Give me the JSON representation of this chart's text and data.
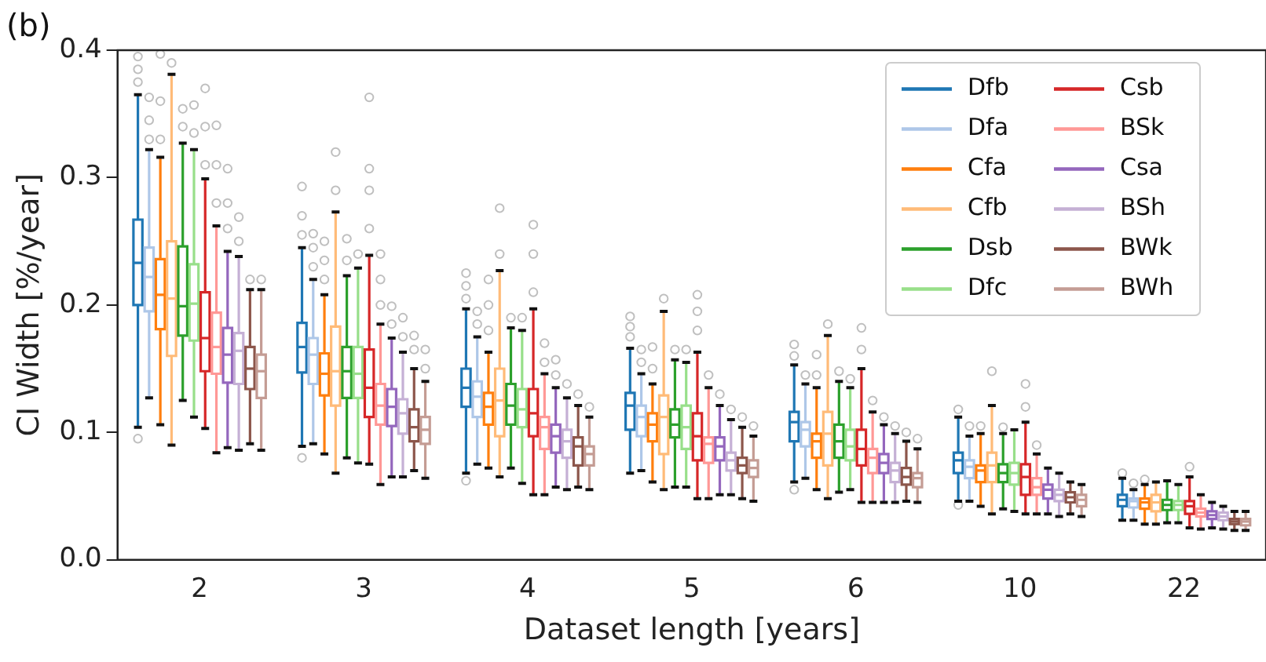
{
  "chart_data": {
    "type": "box",
    "title": "(b)",
    "xlabel": "Dataset length [years]",
    "ylabel": "CI Width [%/year]",
    "categories": [
      "2",
      "3",
      "4",
      "5",
      "6",
      "10",
      "22"
    ],
    "ylim": [
      0,
      0.4
    ],
    "yticks": [
      {
        "value": 0,
        "label": "0.0"
      },
      0.1,
      0.2,
      0.3,
      0.4
    ],
    "legend": "top right",
    "series": [
      {
        "name": "Dfb",
        "color": "#1f77b4",
        "boxes": [
          {
            "low": 0.104,
            "q1": 0.2,
            "median": 0.233,
            "q3": 0.267,
            "high": 0.365,
            "outliers": [
              0.375,
              0.385,
              0.395,
              0.095
            ]
          },
          {
            "low": 0.089,
            "q1": 0.147,
            "median": 0.167,
            "q3": 0.186,
            "high": 0.245,
            "outliers": [
              0.255,
              0.27,
              0.293,
              0.08
            ]
          },
          {
            "low": 0.068,
            "q1": 0.12,
            "median": 0.135,
            "q3": 0.15,
            "high": 0.197,
            "outliers": [
              0.205,
              0.215,
              0.225,
              0.062
            ]
          },
          {
            "low": 0.068,
            "q1": 0.102,
            "median": 0.121,
            "q3": 0.131,
            "high": 0.166,
            "outliers": [
              0.175,
              0.183,
              0.191
            ]
          },
          {
            "low": 0.061,
            "q1": 0.093,
            "median": 0.108,
            "q3": 0.116,
            "high": 0.153,
            "outliers": [
              0.16,
              0.169,
              0.055
            ]
          },
          {
            "low": 0.046,
            "q1": 0.068,
            "median": 0.078,
            "q3": 0.084,
            "high": 0.112,
            "outliers": [
              0.118,
              0.043
            ]
          },
          {
            "low": 0.031,
            "q1": 0.042,
            "median": 0.047,
            "q3": 0.051,
            "high": 0.064,
            "outliers": [
              0.068
            ]
          }
        ]
      },
      {
        "name": "Dfa",
        "color": "#aec7e8",
        "boxes": [
          {
            "low": 0.127,
            "q1": 0.195,
            "median": 0.222,
            "q3": 0.245,
            "high": 0.322,
            "outliers": [
              0.33,
              0.345,
              0.363
            ]
          },
          {
            "low": 0.091,
            "q1": 0.138,
            "median": 0.161,
            "q3": 0.174,
            "high": 0.22,
            "outliers": [
              0.23,
              0.245,
              0.256
            ]
          },
          {
            "low": 0.075,
            "q1": 0.112,
            "median": 0.128,
            "q3": 0.14,
            "high": 0.175,
            "outliers": [
              0.185,
              0.195
            ]
          },
          {
            "low": 0.07,
            "q1": 0.097,
            "median": 0.112,
            "q3": 0.121,
            "high": 0.146,
            "outliers": [
              0.155,
              0.165
            ]
          },
          {
            "low": 0.064,
            "q1": 0.089,
            "median": 0.102,
            "q3": 0.108,
            "high": 0.138,
            "outliers": [
              0.145
            ]
          },
          {
            "low": 0.046,
            "q1": 0.064,
            "median": 0.073,
            "q3": 0.078,
            "high": 0.097,
            "outliers": [
              0.105
            ]
          },
          {
            "low": 0.031,
            "q1": 0.041,
            "median": 0.046,
            "q3": 0.048,
            "high": 0.055,
            "outliers": [
              0.06
            ]
          }
        ]
      },
      {
        "name": "Cfa",
        "color": "#ff7f0e",
        "boxes": [
          {
            "low": 0.106,
            "q1": 0.181,
            "median": 0.208,
            "q3": 0.236,
            "high": 0.316,
            "outliers": [
              0.33,
              0.36,
              0.397
            ]
          },
          {
            "low": 0.083,
            "q1": 0.129,
            "median": 0.146,
            "q3": 0.162,
            "high": 0.208,
            "outliers": [
              0.22,
              0.235,
              0.25
            ]
          },
          {
            "low": 0.072,
            "q1": 0.106,
            "median": 0.12,
            "q3": 0.131,
            "high": 0.163,
            "outliers": [
              0.18,
              0.2,
              0.22
            ]
          },
          {
            "low": 0.061,
            "q1": 0.093,
            "median": 0.106,
            "q3": 0.115,
            "high": 0.138,
            "outliers": [
              0.15,
              0.167
            ]
          },
          {
            "low": 0.055,
            "q1": 0.08,
            "median": 0.093,
            "q3": 0.099,
            "high": 0.135,
            "outliers": [
              0.145,
              0.161
            ]
          },
          {
            "low": 0.042,
            "q1": 0.061,
            "median": 0.07,
            "q3": 0.074,
            "high": 0.099,
            "outliers": [
              0.105
            ]
          },
          {
            "low": 0.028,
            "q1": 0.04,
            "median": 0.045,
            "q3": 0.048,
            "high": 0.059,
            "outliers": [
              0.063
            ]
          }
        ]
      },
      {
        "name": "Cfb",
        "color": "#ffbb78",
        "boxes": [
          {
            "low": 0.09,
            "q1": 0.16,
            "median": 0.205,
            "q3": 0.25,
            "high": 0.381,
            "outliers": [
              0.39
            ]
          },
          {
            "low": 0.068,
            "q1": 0.121,
            "median": 0.148,
            "q3": 0.183,
            "high": 0.273,
            "outliers": [
              0.29,
              0.32
            ]
          },
          {
            "low": 0.065,
            "q1": 0.097,
            "median": 0.125,
            "q3": 0.15,
            "high": 0.227,
            "outliers": [
              0.24,
              0.276
            ]
          },
          {
            "low": 0.055,
            "q1": 0.083,
            "median": 0.112,
            "q3": 0.129,
            "high": 0.195,
            "outliers": [
              0.205
            ]
          },
          {
            "low": 0.048,
            "q1": 0.074,
            "median": 0.099,
            "q3": 0.116,
            "high": 0.176,
            "outliers": [
              0.185
            ]
          },
          {
            "low": 0.036,
            "q1": 0.061,
            "median": 0.074,
            "q3": 0.084,
            "high": 0.121,
            "outliers": [
              0.148
            ]
          },
          {
            "low": 0.028,
            "q1": 0.038,
            "median": 0.045,
            "q3": 0.051,
            "high": 0.061
          }
        ]
      },
      {
        "name": "Dsb",
        "color": "#2ca02c",
        "boxes": [
          {
            "low": 0.125,
            "q1": 0.176,
            "median": 0.199,
            "q3": 0.246,
            "high": 0.327,
            "outliers": [
              0.34,
              0.354
            ]
          },
          {
            "low": 0.08,
            "q1": 0.127,
            "median": 0.148,
            "q3": 0.167,
            "high": 0.223,
            "outliers": [
              0.235,
              0.252
            ]
          },
          {
            "low": 0.072,
            "q1": 0.106,
            "median": 0.121,
            "q3": 0.138,
            "high": 0.182,
            "outliers": [
              0.19
            ]
          },
          {
            "low": 0.057,
            "q1": 0.096,
            "median": 0.106,
            "q3": 0.118,
            "high": 0.157,
            "outliers": [
              0.165
            ]
          },
          {
            "low": 0.053,
            "q1": 0.08,
            "median": 0.093,
            "q3": 0.106,
            "high": 0.14,
            "outliers": [
              0.148
            ]
          },
          {
            "low": 0.04,
            "q1": 0.061,
            "median": 0.068,
            "q3": 0.075,
            "high": 0.099,
            "outliers": [
              0.104
            ]
          },
          {
            "low": 0.029,
            "q1": 0.039,
            "median": 0.043,
            "q3": 0.047,
            "high": 0.062
          }
        ]
      },
      {
        "name": "Dfc",
        "color": "#98df8a",
        "boxes": [
          {
            "low": 0.112,
            "q1": 0.172,
            "median": 0.201,
            "q3": 0.232,
            "high": 0.322,
            "outliers": [
              0.335,
              0.357
            ]
          },
          {
            "low": 0.076,
            "q1": 0.127,
            "median": 0.146,
            "q3": 0.167,
            "high": 0.229,
            "outliers": [
              0.24
            ]
          },
          {
            "low": 0.06,
            "q1": 0.104,
            "median": 0.118,
            "q3": 0.134,
            "high": 0.18,
            "outliers": [
              0.19
            ]
          },
          {
            "low": 0.057,
            "q1": 0.087,
            "median": 0.104,
            "q3": 0.121,
            "high": 0.155,
            "outliers": [
              0.165
            ]
          },
          {
            "low": 0.055,
            "q1": 0.078,
            "median": 0.089,
            "q3": 0.102,
            "high": 0.135,
            "outliers": [
              0.142
            ]
          },
          {
            "low": 0.038,
            "q1": 0.059,
            "median": 0.068,
            "q3": 0.076,
            "high": 0.102
          },
          {
            "low": 0.029,
            "q1": 0.039,
            "median": 0.043,
            "q3": 0.046,
            "high": 0.059
          }
        ]
      },
      {
        "name": "Csb",
        "color": "#d62728",
        "boxes": [
          {
            "low": 0.103,
            "q1": 0.148,
            "median": 0.174,
            "q3": 0.21,
            "high": 0.299,
            "outliers": [
              0.31,
              0.34,
              0.37
            ]
          },
          {
            "low": 0.075,
            "q1": 0.112,
            "median": 0.135,
            "q3": 0.165,
            "high": 0.239,
            "outliers": [
              0.26,
              0.29,
              0.307,
              0.363
            ]
          },
          {
            "low": 0.051,
            "q1": 0.097,
            "median": 0.115,
            "q3": 0.134,
            "high": 0.197,
            "outliers": [
              0.21,
              0.24,
              0.263
            ]
          },
          {
            "low": 0.048,
            "q1": 0.078,
            "median": 0.097,
            "q3": 0.115,
            "high": 0.163,
            "outliers": [
              0.18,
              0.195,
              0.208
            ]
          },
          {
            "low": 0.045,
            "q1": 0.074,
            "median": 0.087,
            "q3": 0.102,
            "high": 0.15,
            "outliers": [
              0.165,
              0.182
            ]
          },
          {
            "low": 0.036,
            "q1": 0.051,
            "median": 0.065,
            "q3": 0.075,
            "high": 0.108,
            "outliers": [
              0.12,
              0.138
            ]
          },
          {
            "low": 0.025,
            "q1": 0.036,
            "median": 0.042,
            "q3": 0.046,
            "high": 0.065,
            "outliers": [
              0.073
            ]
          }
        ]
      },
      {
        "name": "BSk",
        "color": "#ff9896",
        "boxes": [
          {
            "low": 0.084,
            "q1": 0.146,
            "median": 0.167,
            "q3": 0.194,
            "high": 0.262,
            "outliers": [
              0.28,
              0.31,
              0.341
            ]
          },
          {
            "low": 0.059,
            "q1": 0.106,
            "median": 0.121,
            "q3": 0.138,
            "high": 0.185,
            "outliers": [
              0.2,
              0.22,
              0.24
            ]
          },
          {
            "low": 0.051,
            "q1": 0.087,
            "median": 0.104,
            "q3": 0.112,
            "high": 0.146,
            "outliers": [
              0.155,
              0.17
            ]
          },
          {
            "low": 0.048,
            "q1": 0.076,
            "median": 0.091,
            "q3": 0.096,
            "high": 0.135,
            "outliers": [
              0.145
            ]
          },
          {
            "low": 0.045,
            "q1": 0.068,
            "median": 0.08,
            "q3": 0.087,
            "high": 0.116,
            "outliers": [
              0.125
            ]
          },
          {
            "low": 0.036,
            "q1": 0.051,
            "median": 0.057,
            "q3": 0.064,
            "high": 0.083,
            "outliers": [
              0.09
            ]
          },
          {
            "low": 0.024,
            "q1": 0.034,
            "median": 0.037,
            "q3": 0.04,
            "high": 0.051
          }
        ]
      },
      {
        "name": "Csa",
        "color": "#9467bd",
        "boxes": [
          {
            "low": 0.088,
            "q1": 0.139,
            "median": 0.161,
            "q3": 0.182,
            "high": 0.242,
            "outliers": [
              0.26,
              0.28,
              0.307
            ]
          },
          {
            "low": 0.065,
            "q1": 0.105,
            "median": 0.12,
            "q3": 0.134,
            "high": 0.174,
            "outliers": [
              0.185,
              0.199
            ]
          },
          {
            "low": 0.057,
            "q1": 0.084,
            "median": 0.097,
            "q3": 0.106,
            "high": 0.135,
            "outliers": [
              0.145,
              0.157
            ]
          },
          {
            "low": 0.051,
            "q1": 0.078,
            "median": 0.089,
            "q3": 0.096,
            "high": 0.121,
            "outliers": [
              0.13
            ]
          },
          {
            "low": 0.045,
            "q1": 0.068,
            "median": 0.076,
            "q3": 0.083,
            "high": 0.106,
            "outliers": [
              0.112
            ]
          },
          {
            "low": 0.036,
            "q1": 0.048,
            "median": 0.055,
            "q3": 0.059,
            "high": 0.072
          },
          {
            "low": 0.025,
            "q1": 0.032,
            "median": 0.035,
            "q3": 0.038,
            "high": 0.045
          }
        ]
      },
      {
        "name": "BSh",
        "color": "#c5b0d5",
        "boxes": [
          {
            "low": 0.086,
            "q1": 0.138,
            "median": 0.164,
            "q3": 0.178,
            "high": 0.238,
            "outliers": [
              0.25,
              0.269
            ]
          },
          {
            "low": 0.065,
            "q1": 0.099,
            "median": 0.115,
            "q3": 0.126,
            "high": 0.163,
            "outliers": [
              0.175,
              0.19
            ]
          },
          {
            "low": 0.055,
            "q1": 0.08,
            "median": 0.093,
            "q3": 0.102,
            "high": 0.127,
            "outliers": [
              0.138
            ]
          },
          {
            "low": 0.051,
            "q1": 0.07,
            "median": 0.078,
            "q3": 0.084,
            "high": 0.11,
            "outliers": [
              0.118
            ]
          },
          {
            "low": 0.045,
            "q1": 0.061,
            "median": 0.07,
            "q3": 0.076,
            "high": 0.099,
            "outliers": [
              0.105
            ]
          },
          {
            "low": 0.034,
            "q1": 0.046,
            "median": 0.051,
            "q3": 0.055,
            "high": 0.068
          },
          {
            "low": 0.024,
            "q1": 0.031,
            "median": 0.034,
            "q3": 0.037,
            "high": 0.042
          }
        ]
      },
      {
        "name": "BWk",
        "color": "#8c564b",
        "boxes": [
          {
            "low": 0.091,
            "q1": 0.134,
            "median": 0.15,
            "q3": 0.167,
            "high": 0.212,
            "outliers": [
              0.22
            ]
          },
          {
            "low": 0.07,
            "q1": 0.093,
            "median": 0.104,
            "q3": 0.118,
            "high": 0.15,
            "outliers": [
              0.165,
              0.176
            ]
          },
          {
            "low": 0.057,
            "q1": 0.074,
            "median": 0.089,
            "q3": 0.096,
            "high": 0.121,
            "outliers": [
              0.13
            ]
          },
          {
            "low": 0.048,
            "q1": 0.068,
            "median": 0.074,
            "q3": 0.08,
            "high": 0.104,
            "outliers": [
              0.112
            ]
          },
          {
            "low": 0.046,
            "q1": 0.059,
            "median": 0.065,
            "q3": 0.072,
            "high": 0.093,
            "outliers": [
              0.1
            ]
          },
          {
            "low": 0.036,
            "q1": 0.045,
            "median": 0.049,
            "q3": 0.053,
            "high": 0.061
          },
          {
            "low": 0.023,
            "q1": 0.028,
            "median": 0.03,
            "q3": 0.032,
            "high": 0.038
          }
        ]
      },
      {
        "name": "BWh",
        "color": "#c49c94",
        "boxes": [
          {
            "low": 0.086,
            "q1": 0.127,
            "median": 0.148,
            "q3": 0.161,
            "high": 0.212,
            "outliers": [
              0.22
            ]
          },
          {
            "low": 0.064,
            "q1": 0.091,
            "median": 0.102,
            "q3": 0.112,
            "high": 0.14,
            "outliers": [
              0.15,
              0.165
            ]
          },
          {
            "low": 0.055,
            "q1": 0.074,
            "median": 0.083,
            "q3": 0.089,
            "high": 0.112,
            "outliers": [
              0.12
            ]
          },
          {
            "low": 0.046,
            "q1": 0.065,
            "median": 0.072,
            "q3": 0.078,
            "high": 0.097,
            "outliers": [
              0.105
            ]
          },
          {
            "low": 0.045,
            "q1": 0.057,
            "median": 0.064,
            "q3": 0.068,
            "high": 0.087,
            "outliers": [
              0.095
            ]
          },
          {
            "low": 0.034,
            "q1": 0.042,
            "median": 0.047,
            "q3": 0.051,
            "high": 0.059
          },
          {
            "low": 0.023,
            "q1": 0.027,
            "median": 0.03,
            "q3": 0.032,
            "high": 0.038
          }
        ]
      }
    ]
  }
}
